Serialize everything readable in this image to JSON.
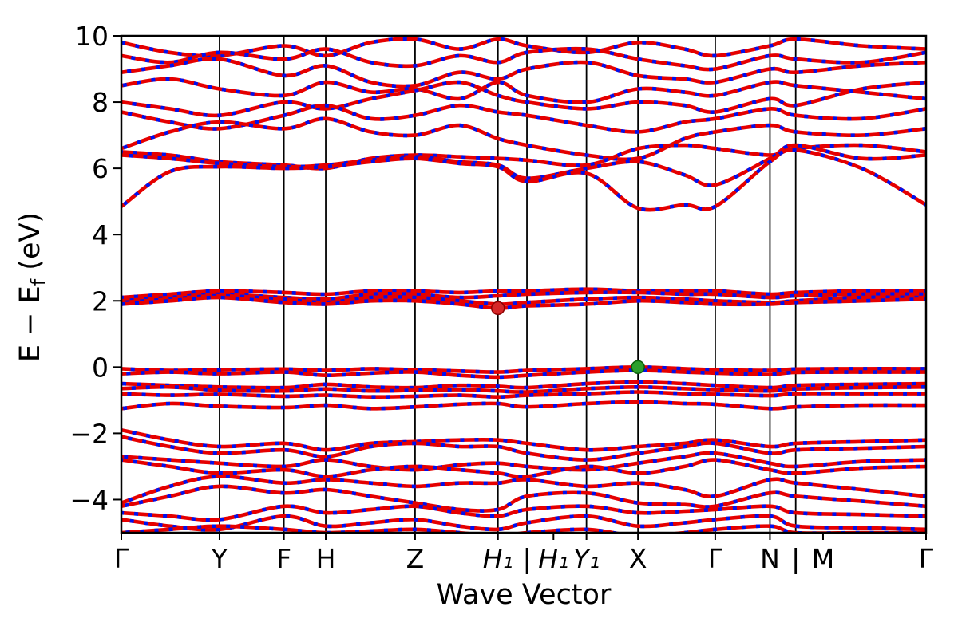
{
  "figure": {
    "background": "#ffffff"
  },
  "chart_data": {
    "type": "line",
    "subtype": "band-structure",
    "title": "",
    "xlabel": "Wave Vector",
    "ylabel": "E − E_f (eV)",
    "ylabel_parts": {
      "pre": "E − E",
      "sub": "f",
      "post": " (eV)"
    },
    "xlim": [
      0,
      1
    ],
    "ylim": [
      -5,
      10
    ],
    "yticks": [
      -4,
      -2,
      0,
      2,
      4,
      6,
      8,
      10
    ],
    "xticks": [
      {
        "pos": 0.0,
        "label": "Γ",
        "italic": false
      },
      {
        "pos": 0.122,
        "label": "Y",
        "italic": false
      },
      {
        "pos": 0.202,
        "label": "F",
        "italic": false
      },
      {
        "pos": 0.254,
        "label": "H",
        "italic": false
      },
      {
        "pos": 0.365,
        "label": "Z",
        "italic": false
      },
      {
        "pos": 0.468,
        "label": "H₁",
        "italic": true
      },
      {
        "pos": 0.504,
        "label": "|",
        "italic": false
      },
      {
        "pos": 0.537,
        "label": "H₁",
        "italic": true
      },
      {
        "pos": 0.578,
        "label": "Y₁",
        "italic": true
      },
      {
        "pos": 0.642,
        "label": "X",
        "italic": false
      },
      {
        "pos": 0.738,
        "label": "Γ",
        "italic": false
      },
      {
        "pos": 0.806,
        "label": "N",
        "italic": false
      },
      {
        "pos": 0.838,
        "label": "|",
        "italic": false
      },
      {
        "pos": 0.872,
        "label": "M",
        "italic": false
      },
      {
        "pos": 1.0,
        "label": "Γ",
        "italic": false
      }
    ],
    "vlines": [
      0.122,
      0.202,
      0.254,
      0.365,
      0.468,
      0.504,
      0.578,
      0.642,
      0.738,
      0.806,
      0.838
    ],
    "colors": {
      "band_primary": "#e50000",
      "band_overlay": "#0011ee",
      "cbm_dot": "#d62728",
      "cbm_dot_edge": "#8b0000",
      "vbm_dot": "#2ca02c",
      "vbm_dot_edge": "#0a5d0a",
      "axis": "#000000"
    },
    "markers": [
      {
        "name": "cbm-marker",
        "x": 0.468,
        "y": 1.78,
        "color": "#d62728",
        "edge": "#8b0000"
      },
      {
        "name": "vbm-marker",
        "x": 0.642,
        "y": 0.0,
        "color": "#2ca02c",
        "edge": "#0a5d0a"
      }
    ],
    "x": [
      0,
      0.06,
      0.122,
      0.202,
      0.254,
      0.31,
      0.365,
      0.42,
      0.468,
      0.504,
      0.578,
      0.642,
      0.7,
      0.738,
      0.806,
      0.838,
      0.92,
      1.0
    ],
    "bands": [
      [
        9.8,
        9.5,
        9.4,
        9.7,
        9.4,
        9.8,
        9.9,
        9.6,
        9.9,
        9.7,
        9.5,
        9.8,
        9.6,
        9.4,
        9.7,
        9.9,
        9.7,
        9.6
      ],
      [
        9.4,
        9.2,
        9.5,
        9.3,
        9.6,
        9.2,
        9.1,
        9.4,
        9.2,
        9.5,
        9.6,
        9.3,
        9.1,
        9.0,
        9.4,
        9.3,
        9.2,
        9.5
      ],
      [
        8.9,
        9.1,
        9.3,
        8.8,
        9.1,
        8.6,
        8.5,
        8.9,
        8.7,
        9.0,
        9.2,
        8.8,
        8.7,
        8.6,
        9.0,
        8.9,
        9.1,
        9.2
      ],
      [
        8.5,
        8.7,
        8.4,
        8.2,
        8.6,
        8.3,
        8.4,
        8.1,
        8.6,
        8.2,
        8.0,
        8.4,
        8.3,
        8.2,
        8.6,
        8.5,
        8.3,
        8.1
      ],
      [
        8.0,
        7.8,
        7.6,
        8.0,
        7.8,
        8.1,
        8.35,
        8.6,
        8.2,
        8.0,
        7.8,
        8.0,
        7.9,
        7.7,
        8.1,
        7.9,
        8.4,
        8.6
      ],
      [
        7.7,
        7.4,
        7.2,
        7.6,
        7.9,
        7.5,
        7.6,
        7.9,
        7.7,
        7.6,
        7.3,
        7.1,
        7.4,
        7.5,
        7.8,
        7.6,
        7.5,
        7.8
      ],
      [
        6.6,
        7.1,
        7.4,
        7.2,
        7.5,
        7.1,
        7.0,
        7.3,
        6.9,
        6.7,
        6.4,
        6.3,
        6.9,
        7.1,
        7.3,
        7.1,
        7.0,
        7.2
      ],
      [
        6.5,
        6.4,
        6.2,
        6.1,
        6.0,
        6.3,
        6.4,
        6.35,
        6.3,
        6.25,
        6.1,
        6.6,
        6.7,
        6.6,
        6.4,
        6.6,
        6.7,
        6.5
      ],
      [
        6.4,
        6.3,
        6.15,
        6.05,
        6.1,
        6.25,
        6.35,
        6.2,
        6.1,
        5.7,
        6.0,
        6.2,
        5.8,
        5.5,
        6.3,
        6.7,
        6.3,
        6.4
      ],
      [
        4.85,
        5.9,
        6.05,
        6.0,
        6.05,
        6.2,
        6.3,
        6.15,
        6.05,
        5.6,
        5.85,
        4.8,
        4.9,
        4.85,
        6.2,
        6.55,
        6.0,
        4.9
      ],
      [
        2.1,
        2.2,
        2.3,
        2.25,
        2.2,
        2.3,
        2.3,
        2.25,
        2.3,
        2.3,
        2.35,
        2.3,
        2.3,
        2.3,
        2.2,
        2.25,
        2.3,
        2.3
      ],
      [
        2.0,
        2.1,
        2.2,
        2.1,
        2.05,
        2.2,
        2.2,
        2.1,
        2.15,
        2.2,
        2.25,
        2.25,
        2.2,
        2.2,
        2.1,
        2.15,
        2.2,
        2.2
      ],
      [
        1.95,
        2.05,
        2.15,
        2.05,
        1.95,
        2.1,
        2.1,
        2.0,
        1.9,
        1.95,
        2.05,
        2.1,
        2.05,
        2.0,
        1.95,
        2.0,
        2.1,
        2.1
      ],
      [
        1.9,
        2.0,
        2.1,
        1.95,
        1.9,
        2.0,
        2.0,
        1.9,
        1.78,
        1.85,
        1.9,
        2.0,
        1.95,
        1.9,
        1.9,
        1.95,
        2.0,
        2.05
      ],
      [
        -0.05,
        -0.1,
        -0.08,
        -0.06,
        -0.1,
        -0.05,
        -0.08,
        -0.12,
        -0.15,
        -0.1,
        -0.05,
        0.0,
        -0.05,
        -0.08,
        -0.1,
        -0.06,
        -0.05,
        -0.05
      ],
      [
        -0.2,
        -0.15,
        -0.2,
        -0.15,
        -0.25,
        -0.18,
        -0.15,
        -0.25,
        -0.3,
        -0.25,
        -0.15,
        -0.1,
        -0.15,
        -0.18,
        -0.22,
        -0.16,
        -0.15,
        -0.15
      ],
      [
        -0.5,
        -0.55,
        -0.6,
        -0.62,
        -0.52,
        -0.6,
        -0.62,
        -0.55,
        -0.58,
        -0.62,
        -0.5,
        -0.45,
        -0.5,
        -0.55,
        -0.62,
        -0.55,
        -0.52,
        -0.5
      ],
      [
        -0.65,
        -0.6,
        -0.7,
        -0.72,
        -0.66,
        -0.72,
        -0.7,
        -0.68,
        -0.72,
        -0.75,
        -0.65,
        -0.6,
        -0.65,
        -0.68,
        -0.72,
        -0.66,
        -0.62,
        -0.6
      ],
      [
        -0.8,
        -0.85,
        -0.82,
        -0.88,
        -0.85,
        -0.9,
        -0.88,
        -0.85,
        -0.9,
        -0.85,
        -0.8,
        -0.75,
        -0.8,
        -0.82,
        -0.86,
        -0.8,
        -0.8,
        -0.8
      ],
      [
        -1.25,
        -1.1,
        -1.18,
        -1.22,
        -1.15,
        -1.25,
        -1.2,
        -1.12,
        -1.1,
        -1.2,
        -1.1,
        -1.05,
        -1.1,
        -1.12,
        -1.25,
        -1.2,
        -1.15,
        -1.15
      ],
      [
        -1.9,
        -2.2,
        -2.4,
        -2.3,
        -2.5,
        -2.3,
        -2.25,
        -2.2,
        -2.2,
        -2.3,
        -2.5,
        -2.4,
        -2.3,
        -2.2,
        -2.4,
        -2.3,
        -2.25,
        -2.2
      ],
      [
        -2.1,
        -2.4,
        -2.6,
        -2.5,
        -2.7,
        -2.4,
        -2.3,
        -2.4,
        -2.4,
        -2.6,
        -2.8,
        -2.6,
        -2.4,
        -2.3,
        -2.6,
        -2.5,
        -2.45,
        -2.4
      ],
      [
        -2.7,
        -2.8,
        -2.9,
        -3.0,
        -2.8,
        -3.0,
        -3.1,
        -2.95,
        -2.9,
        -3.0,
        -3.1,
        -2.9,
        -2.7,
        -2.6,
        -2.9,
        -3.0,
        -2.85,
        -2.8
      ],
      [
        -2.8,
        -3.0,
        -3.2,
        -3.1,
        -3.3,
        -3.1,
        -3.0,
        -3.1,
        -3.2,
        -3.3,
        -3.0,
        -3.2,
        -3.0,
        -2.8,
        -3.1,
        -3.2,
        -3.05,
        -3.0
      ],
      [
        -4.1,
        -3.6,
        -3.3,
        -3.5,
        -3.4,
        -3.5,
        -3.6,
        -3.5,
        -3.5,
        -3.4,
        -3.6,
        -3.5,
        -3.7,
        -3.9,
        -3.4,
        -3.5,
        -3.7,
        -3.9
      ],
      [
        -4.2,
        -3.9,
        -3.6,
        -3.8,
        -3.7,
        -3.9,
        -4.1,
        -4.3,
        -4.3,
        -3.9,
        -3.8,
        -4.1,
        -4.15,
        -4.2,
        -3.8,
        -3.9,
        -4.05,
        -4.2
      ],
      [
        -4.4,
        -4.5,
        -4.6,
        -4.2,
        -4.4,
        -4.3,
        -4.2,
        -4.4,
        -4.5,
        -4.3,
        -4.2,
        -4.4,
        -4.35,
        -4.3,
        -4.2,
        -4.4,
        -4.45,
        -4.5
      ],
      [
        -4.6,
        -4.8,
        -4.9,
        -4.5,
        -4.8,
        -4.7,
        -4.6,
        -4.8,
        -4.9,
        -4.7,
        -4.5,
        -4.8,
        -4.7,
        -4.6,
        -4.5,
        -4.8,
        -4.85,
        -4.9
      ],
      [
        -5.0,
        -4.9,
        -4.8,
        -4.9,
        -5.0,
        -4.95,
        -4.9,
        -5.0,
        -5.1,
        -5.0,
        -4.9,
        -5.1,
        -5.0,
        -4.9,
        -4.8,
        -5.0,
        -5.0,
        -5.0
      ]
    ]
  }
}
